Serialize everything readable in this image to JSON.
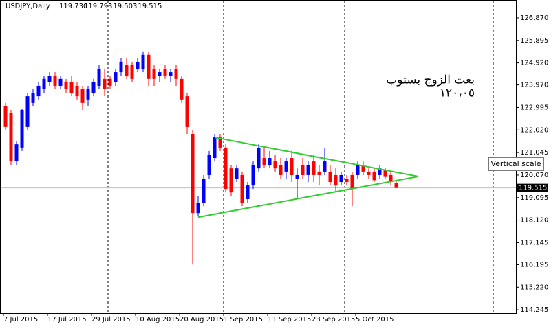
{
  "chart_data": {
    "type": "candlestick",
    "header": {
      "symbol": "USDJPY,Daily",
      "ohlc": [
        "119.730",
        "119.793",
        "119.503",
        "119.515"
      ]
    },
    "annotation": {
      "line1": "بعت الزوج بستوب",
      "line2": "١٢٠،٠٥",
      "color": "#e8262a"
    },
    "tooltip": "Vertical scale",
    "bull_color": "#0000ff",
    "bear_color": "#ff0000",
    "categories": [
      "7 Jul 2015",
      null,
      null,
      null,
      null,
      null,
      null,
      null,
      "17 Jul 2015",
      null,
      null,
      null,
      null,
      null,
      null,
      null,
      "29 Jul 2015",
      null,
      null,
      null,
      null,
      null,
      null,
      null,
      "10 Aug 2015",
      null,
      null,
      null,
      null,
      null,
      null,
      null,
      "20 Aug 2015",
      null,
      null,
      null,
      null,
      null,
      null,
      null,
      "1 Sep 2015",
      null,
      null,
      null,
      null,
      null,
      null,
      null,
      "11 Sep 2015",
      null,
      null,
      null,
      null,
      null,
      null,
      null,
      "23 Sep 2015",
      null,
      null,
      null,
      null,
      null,
      null,
      null,
      "5 Oct 2015",
      null,
      null,
      null,
      null,
      null,
      null,
      null
    ],
    "open": [
      123.04,
      122.74,
      120.66,
      121.26,
      122.15,
      123.19,
      123.48,
      123.78,
      124.08,
      124.37,
      123.93,
      124.08,
      124.08,
      123.93,
      123.78,
      123.34,
      123.63,
      123.93,
      124.23,
      124.23,
      124.08,
      124.52,
      124.82,
      124.82,
      124.67,
      124.67,
      125.27,
      124.67,
      124.37,
      124.67,
      124.37,
      124.67,
      124.23,
      123.48,
      121.85,
      118.43,
      118.88,
      120.07,
      120.81,
      121.7,
      121.26,
      120.36,
      119.92,
      120.07,
      119.03,
      119.62,
      120.36,
      120.81,
      120.51,
      120.66,
      120.51,
      120.22,
      120.81,
      119.92,
      120.51,
      120.07,
      120.66,
      120.22,
      120.22,
      120.22,
      120.07,
      119.77,
      119.92,
      120.07,
      120.07,
      120.51,
      120.22,
      120.22,
      120.07,
      120.29,
      120.07,
      119.73
    ],
    "high": [
      123.19,
      122.89,
      121.55,
      122.95,
      123.63,
      123.78,
      124.08,
      124.37,
      124.52,
      124.52,
      124.37,
      124.23,
      124.37,
      124.08,
      123.93,
      123.93,
      124.23,
      124.82,
      124.67,
      124.37,
      124.67,
      125.12,
      125.12,
      124.97,
      125.12,
      125.42,
      125.42,
      124.82,
      124.67,
      124.82,
      124.67,
      124.82,
      124.37,
      123.63,
      122.0,
      119.17,
      120.07,
      121.11,
      121.85,
      121.85,
      121.4,
      120.51,
      120.51,
      120.22,
      119.77,
      120.66,
      121.4,
      121.26,
      121.11,
      120.96,
      120.81,
      120.81,
      121.11,
      120.36,
      120.81,
      120.66,
      120.96,
      120.51,
      121.26,
      120.51,
      120.36,
      120.22,
      120.07,
      120.22,
      120.66,
      120.66,
      120.36,
      120.36,
      120.51,
      120.36,
      120.22,
      119.793
    ],
    "low": [
      122.0,
      120.51,
      120.51,
      121.11,
      122.0,
      123.04,
      123.34,
      123.63,
      123.93,
      123.78,
      123.78,
      123.63,
      123.48,
      123.34,
      122.89,
      123.04,
      123.48,
      123.78,
      123.48,
      123.78,
      123.93,
      124.37,
      124.23,
      124.08,
      124.52,
      124.52,
      123.93,
      123.93,
      124.08,
      124.23,
      124.08,
      123.93,
      123.19,
      121.85,
      116.2,
      118.28,
      118.73,
      119.92,
      120.66,
      121.11,
      119.32,
      119.17,
      119.77,
      118.73,
      118.88,
      119.47,
      120.22,
      120.36,
      120.36,
      120.22,
      119.92,
      119.92,
      119.77,
      119.03,
      119.92,
      119.77,
      119.77,
      119.62,
      120.07,
      119.62,
      119.32,
      119.62,
      119.62,
      118.73,
      119.92,
      120.07,
      119.92,
      119.77,
      119.92,
      119.92,
      119.62,
      119.503
    ],
    "close": [
      122.15,
      120.66,
      121.4,
      122.89,
      123.48,
      123.63,
      123.93,
      124.23,
      124.37,
      123.93,
      124.23,
      123.78,
      123.63,
      123.48,
      123.19,
      123.78,
      124.08,
      124.67,
      123.78,
      123.93,
      124.52,
      124.97,
      124.37,
      124.23,
      124.97,
      125.27,
      124.23,
      124.23,
      124.52,
      124.37,
      124.52,
      124.23,
      123.34,
      122.15,
      118.43,
      118.88,
      119.92,
      120.96,
      121.7,
      121.26,
      119.47,
      119.32,
      120.36,
      118.88,
      119.62,
      120.51,
      121.26,
      120.51,
      120.81,
      120.36,
      120.07,
      120.66,
      120.07,
      120.07,
      120.07,
      120.51,
      120.07,
      120.07,
      120.66,
      119.77,
      119.62,
      120.07,
      119.77,
      119.47,
      120.51,
      120.22,
      120.07,
      119.85,
      120.36,
      119.99,
      119.77,
      119.515
    ],
    "trendlines": [
      {
        "color": "#33cc33",
        "points": [
          [
            38,
            121.7
          ],
          [
            75,
            120.01
          ]
        ]
      },
      {
        "color": "#33cc33",
        "points": [
          [
            35,
            118.25
          ],
          [
            75,
            120.01
          ]
        ]
      }
    ],
    "current_price": {
      "value": 119.515,
      "label": "119.515"
    },
    "ylim": [
      114.1,
      127.64
    ],
    "yticks": [
      {
        "value": 126.87,
        "label": "126.870"
      },
      {
        "value": 125.895,
        "label": "125.895"
      },
      {
        "value": 124.92,
        "label": "124.920"
      },
      {
        "value": 123.97,
        "label": "123.970"
      },
      {
        "value": 122.995,
        "label": "122.995"
      },
      {
        "value": 122.02,
        "label": "122.020"
      },
      {
        "value": 121.045,
        "label": "121.045"
      },
      {
        "value": 120.07,
        "label": "120.070"
      },
      {
        "value": 119.095,
        "label": "119.095"
      },
      {
        "value": 118.12,
        "label": "118.120"
      },
      {
        "value": 117.145,
        "label": "117.145"
      },
      {
        "value": 116.195,
        "label": "116.195"
      },
      {
        "value": 115.22,
        "label": "115.220"
      },
      {
        "value": 114.245,
        "label": "114.245"
      }
    ]
  }
}
